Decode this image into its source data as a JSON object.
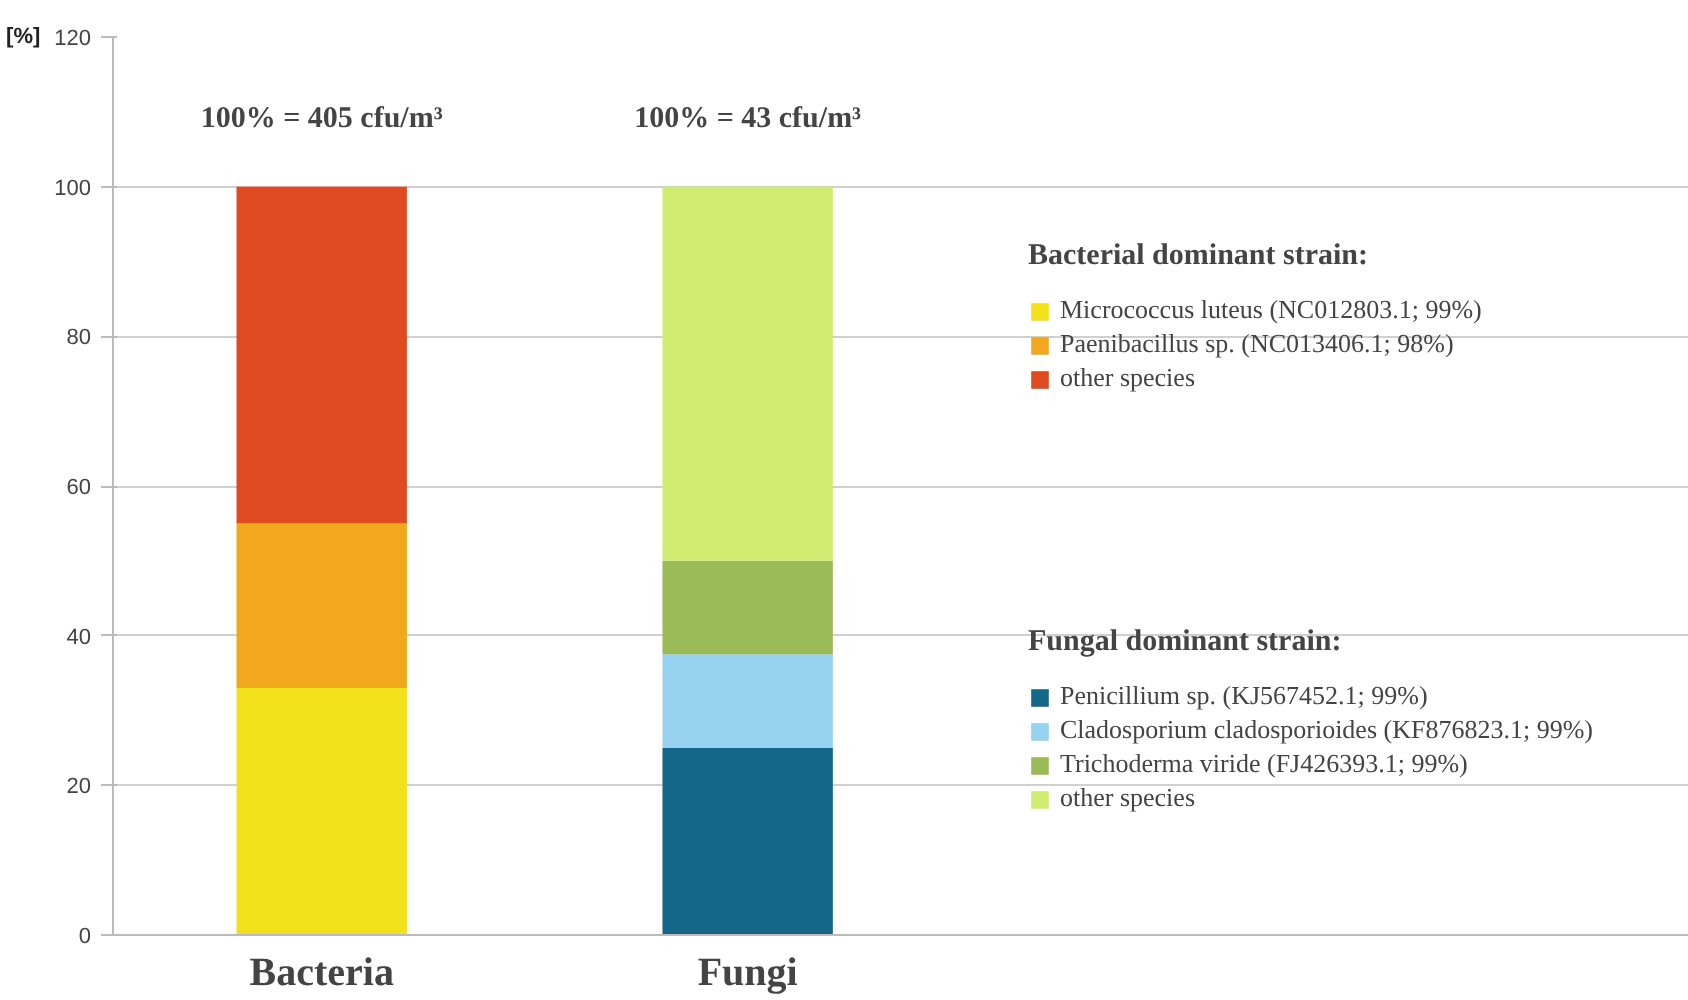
{
  "chart_data": {
    "type": "bar",
    "stacked": true,
    "ylabel": "[%]",
    "categories": [
      "Bacteria",
      "Fungi"
    ],
    "series": [
      {
        "name": "Micrococcus luteus (NC012803.1; 99%)",
        "color": "#f2e01a",
        "values": [
          33,
          null
        ]
      },
      {
        "name": "Paenibacillus sp. (NC013406.1; 98%)",
        "color": "#f2a81e",
        "values": [
          22,
          null
        ]
      },
      {
        "name": "other species",
        "color": "#e04a20",
        "values": [
          45,
          null
        ]
      },
      {
        "name": "Penicillium sp. (KJ567452.1; 99%)",
        "color": "#156789",
        "values": [
          null,
          25
        ]
      },
      {
        "name": "Cladosporium cladosporioides (KF876823.1; 99%)",
        "color": "#97d3f0",
        "values": [
          null,
          12.5
        ]
      },
      {
        "name": "Trichoderma viride (FJ426393.1; 99%)",
        "color": "#9bbb59",
        "values": [
          null,
          12.5
        ]
      },
      {
        "name": "other species",
        "color": "#d0ec70",
        "values": [
          null,
          50
        ]
      }
    ],
    "ylim": [
      0,
      120
    ],
    "yticks": [
      0,
      20,
      40,
      60,
      80,
      100,
      120
    ],
    "grid": "y",
    "legend": "right",
    "legend_title": "Bacterial dominant strain:",
    "annotations": [
      "100% = 405 cfu/m³",
      "100% = 43 cfu/m³",
      "Fungal dominant strain:"
    ]
  }
}
